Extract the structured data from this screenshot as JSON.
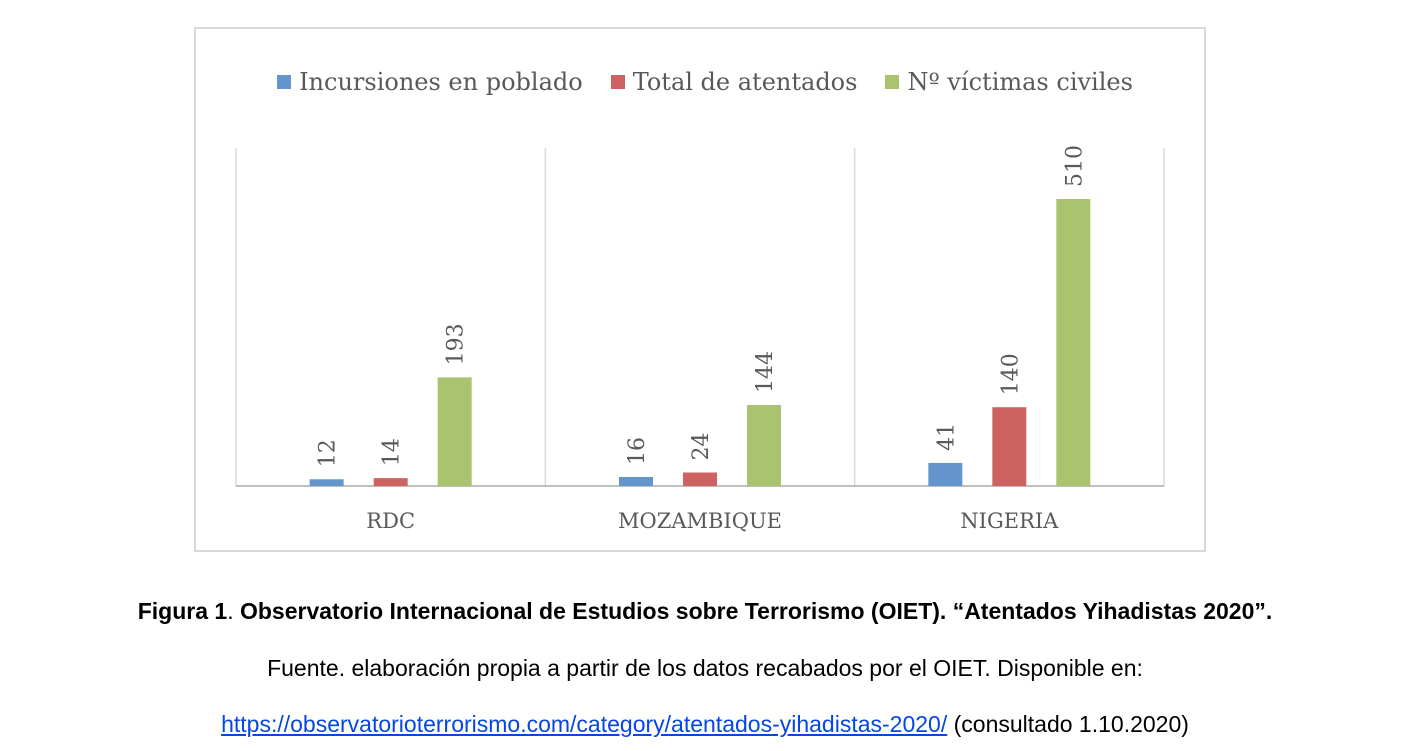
{
  "chart_data": {
    "type": "bar",
    "categories": [
      "RDC",
      "MOZAMBIQUE",
      "NIGERIA"
    ],
    "series": [
      {
        "name": "Incursiones en poblado",
        "color": "#6495cd",
        "values": [
          12,
          16,
          41
        ]
      },
      {
        "name": "Total de atentados",
        "color": "#cd6361",
        "values": [
          14,
          24,
          140
        ]
      },
      {
        "name": "Nº víctimas civiles",
        "color": "#aac36f",
        "values": [
          193,
          144,
          510
        ]
      }
    ],
    "data_labels": true,
    "legend_position": "top",
    "grid": "vertical category separators"
  },
  "caption": {
    "figure_label": "Figura 1",
    "separator": ".",
    "title": " Observatorio Internacional de Estudios sobre Terrorismo (OIET). “Atentados Yihadistas 2020”.",
    "source": "Fuente. elaboración propia a partir de los datos recabados por el OIET. Disponible en:",
    "link_text": "https://observatorioterrorismo.com/category/atentados-yihadistas-2020/",
    "after_link": " (consultado 1.10.2020)"
  }
}
